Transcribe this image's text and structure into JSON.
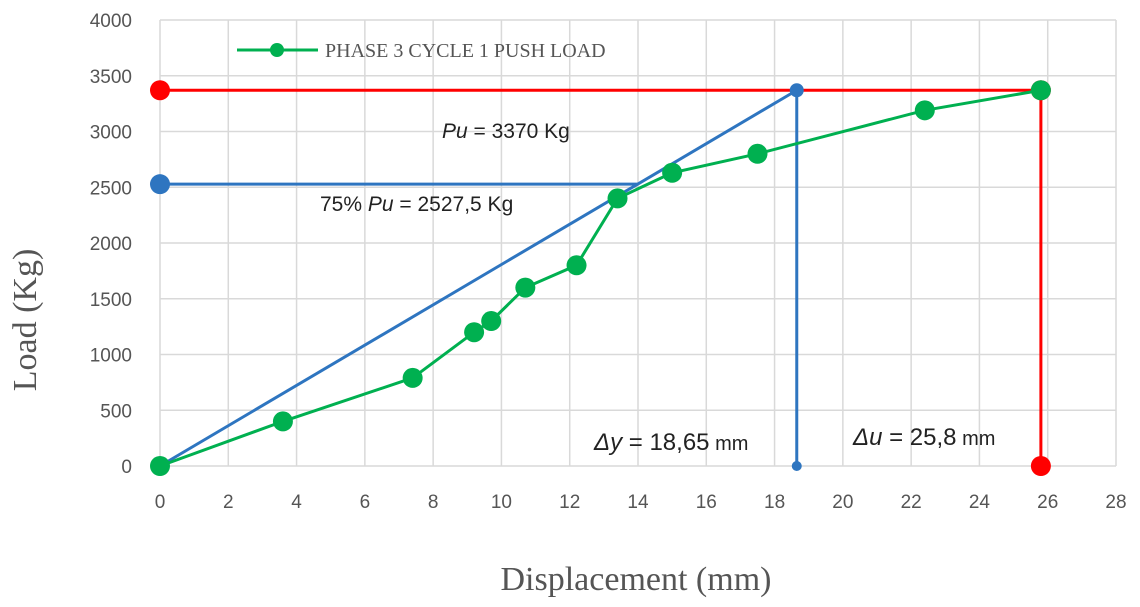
{
  "chart_data": {
    "type": "scatter",
    "title": "",
    "xlabel": "Displacement (mm)",
    "ylabel": "Load (Kg)",
    "xlim": [
      0,
      28
    ],
    "ylim": [
      0,
      4000
    ],
    "xticks": [
      0,
      2,
      4,
      6,
      8,
      10,
      12,
      14,
      16,
      18,
      20,
      22,
      24,
      26,
      28
    ],
    "yticks": [
      0,
      500,
      1000,
      1500,
      2000,
      2500,
      3000,
      3500,
      4000
    ],
    "grid": true,
    "legend": "top-left",
    "series": [
      {
        "name": "PHASE 3 CYCLE 1 PUSH LOAD",
        "color": "#00b050",
        "points": [
          [
            0,
            0
          ],
          [
            3.6,
            400
          ],
          [
            7.4,
            790
          ],
          [
            9.2,
            1200
          ],
          [
            9.7,
            1300
          ],
          [
            10.7,
            1600
          ],
          [
            12.2,
            1800
          ],
          [
            13.4,
            2400
          ],
          [
            15.0,
            2630
          ],
          [
            17.5,
            2800
          ],
          [
            22.4,
            3190
          ],
          [
            25.8,
            3370
          ]
        ]
      }
    ],
    "construction_lines": {
      "secant": {
        "color": "#2e75c0",
        "points": [
          [
            0,
            0
          ],
          [
            18.65,
            3370
          ]
        ]
      },
      "yield_vertical": {
        "color": "#2e75c0",
        "points": [
          [
            18.65,
            3370
          ],
          [
            18.65,
            0
          ]
        ]
      },
      "load_75_horizontal": {
        "color": "#2e75c0",
        "points": [
          [
            0,
            2527.5
          ],
          [
            14.0,
            2527.5
          ]
        ]
      },
      "pu_horizontal": {
        "color": "#ff0000",
        "points": [
          [
            0,
            3370
          ],
          [
            25.8,
            3370
          ]
        ]
      },
      "ultimate_vertical": {
        "color": "#ff0000",
        "points": [
          [
            25.8,
            3370
          ],
          [
            25.8,
            0
          ]
        ]
      }
    },
    "annotations": {
      "pu": {
        "sym": "Pu",
        "eq": " = 3370",
        "unit": " Kg"
      },
      "pu75": {
        "pre": "75% ",
        "sym": "Pu",
        "eq": " = 2527,5 Kg"
      },
      "dy": {
        "sym": "Δy",
        "eq": " = 18,65",
        "unit": " mm"
      },
      "du": {
        "sym": "Δu",
        "eq": " = 25,8",
        "unit": " mm"
      }
    }
  }
}
